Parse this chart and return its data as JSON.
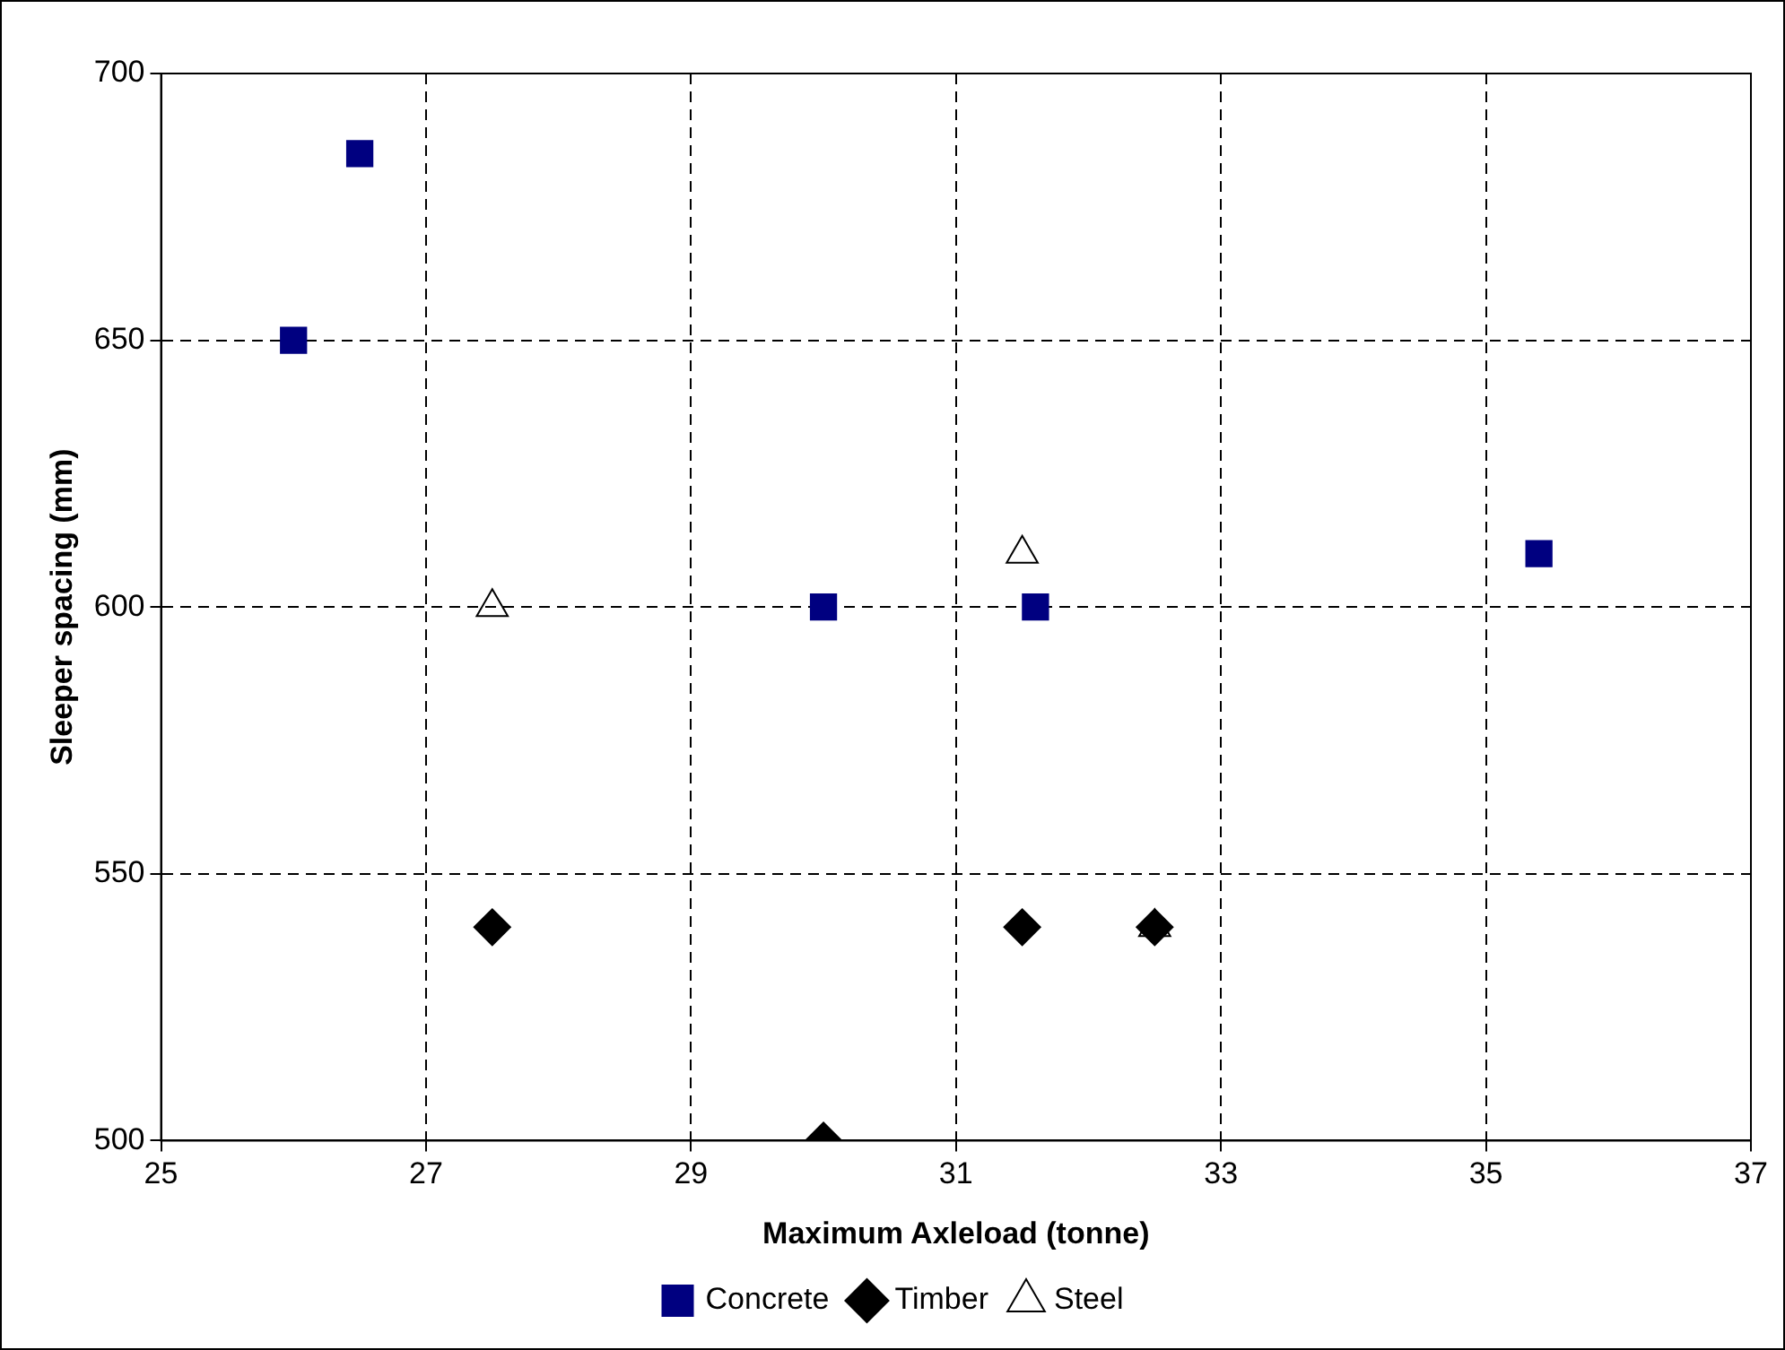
{
  "chart_data": {
    "type": "scatter",
    "xlabel": "Maximum Axleload (tonne)",
    "ylabel": "Sleeper spacing (mm)",
    "xlim": [
      25,
      37
    ],
    "xticks": [
      25,
      27,
      29,
      31,
      33,
      35,
      37
    ],
    "ylim": [
      500,
      700
    ],
    "yticks": [
      500,
      550,
      600,
      650,
      700
    ],
    "grid": true,
    "legend": "bottom",
    "series": [
      {
        "name": "Concrete",
        "color": "#000080",
        "marker": "square",
        "x": [
          26,
          26.5,
          30,
          31.6,
          35.4
        ],
        "values": [
          650,
          685,
          600,
          600,
          610
        ]
      },
      {
        "name": "Timber",
        "color": "#000000",
        "marker": "diamond",
        "x": [
          27.5,
          30,
          31.5,
          32.5
        ],
        "values": [
          540,
          500,
          540,
          540
        ]
      },
      {
        "name": "Steel",
        "color": "#000000",
        "marker": "triangle",
        "x": [
          27.5,
          31.5,
          32.5
        ],
        "values": [
          600,
          610,
          540
        ]
      }
    ]
  }
}
